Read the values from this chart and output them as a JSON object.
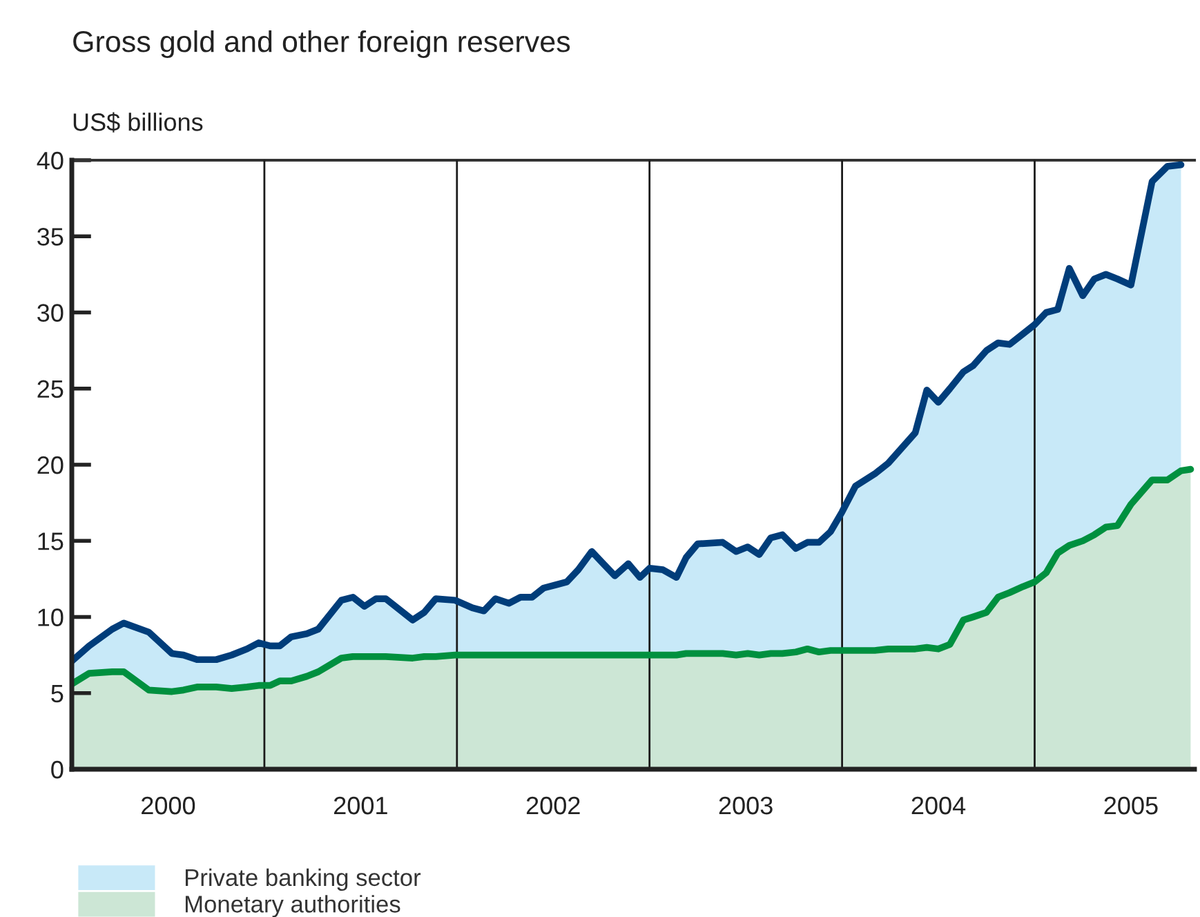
{
  "chart_data": {
    "type": "area",
    "stacked": true,
    "title": "Gross gold and other foreign reserves",
    "ylabel": "US$ billions",
    "x": [
      2000.0,
      2000.09,
      2000.21,
      2000.27,
      2000.4,
      2000.52,
      2000.58,
      2000.65,
      2000.75,
      2000.83,
      2000.91,
      2000.97,
      2001.03,
      2001.08,
      2001.14,
      2001.22,
      2001.28,
      2001.4,
      2001.46,
      2001.52,
      2001.58,
      2001.63,
      2001.77,
      2001.83,
      2001.89,
      2001.99,
      2002.08,
      2002.14,
      2002.2,
      2002.27,
      2002.33,
      2002.39,
      2002.45,
      2002.51,
      2002.57,
      2002.63,
      2002.7,
      2002.76,
      2002.82,
      2002.89,
      2002.95,
      2003.0,
      2003.07,
      2003.14,
      2003.19,
      2003.25,
      2003.38,
      2003.45,
      2003.51,
      2003.57,
      2003.63,
      2003.69,
      2003.76,
      2003.82,
      2003.88,
      2003.94,
      2004.0,
      2004.07,
      2004.17,
      2004.24,
      2004.31,
      2004.38,
      2004.44,
      2004.5,
      2004.56,
      2004.63,
      2004.68,
      2004.75,
      2004.81,
      2004.87,
      2004.94,
      2005.0,
      2005.06,
      2005.12,
      2005.18,
      2005.25,
      2005.31,
      2005.37,
      2005.43,
      2005.5,
      2005.61,
      2005.69,
      2005.76,
      2005.81
    ],
    "series": [
      {
        "name": "Monetary authorities",
        "color": "#00903f",
        "values": [
          5.6,
          6.3,
          6.4,
          6.4,
          5.2,
          5.1,
          5.2,
          5.4,
          5.4,
          5.3,
          5.4,
          5.5,
          5.5,
          5.8,
          5.8,
          6.1,
          6.4,
          7.3,
          7.4,
          7.4,
          7.4,
          7.4,
          7.3,
          7.4,
          7.4,
          7.5,
          7.5,
          7.5,
          7.5,
          7.5,
          7.5,
          7.5,
          7.5,
          7.5,
          7.5,
          7.5,
          7.5,
          7.5,
          7.5,
          7.5,
          7.5,
          7.5,
          7.5,
          7.5,
          7.6,
          7.6,
          7.6,
          7.5,
          7.6,
          7.5,
          7.6,
          7.6,
          7.7,
          7.9,
          7.7,
          7.8,
          7.8,
          7.8,
          7.8,
          7.9,
          7.9,
          7.9,
          8.0,
          7.9,
          8.2,
          9.8,
          10.0,
          10.3,
          11.3,
          11.6,
          12.0,
          12.3,
          12.9,
          14.2,
          14.7,
          15.0,
          15.4,
          15.9,
          16.0,
          17.4,
          19.0,
          19.0,
          19.6,
          19.7
        ]
      },
      {
        "name": "Private banking sector",
        "color": "#003d7a",
        "values": [
          1.5,
          1.8,
          2.8,
          3.2,
          3.8,
          2.5,
          2.3,
          1.8,
          1.8,
          2.2,
          2.5,
          2.8,
          2.6,
          2.3,
          2.9,
          2.8,
          2.8,
          3.8,
          3.9,
          3.3,
          3.8,
          3.8,
          2.5,
          2.9,
          3.8,
          3.6,
          3.1,
          2.9,
          3.7,
          3.4,
          3.8,
          3.8,
          4.4,
          4.6,
          4.8,
          5.6,
          6.8,
          6.0,
          5.2,
          6.0,
          5.1,
          5.7,
          5.6,
          5.1,
          6.3,
          7.2,
          7.3,
          6.8,
          7.0,
          6.6,
          7.6,
          7.8,
          6.8,
          7.0,
          7.2,
          7.8,
          9.1,
          10.8,
          11.6,
          12.2,
          13.2,
          14.2,
          16.9,
          16.2,
          16.8,
          16.3,
          16.5,
          17.2,
          16.7,
          16.3,
          16.6,
          16.9,
          17.1,
          16.0,
          18.2,
          16.1,
          16.8,
          16.6,
          16.2,
          14.4,
          19.6,
          20.6,
          20.1,
          null
        ]
      }
    ],
    "colors": [
      "#cce6d5",
      "#c8e9f8"
    ],
    "xlim": [
      2000.0,
      2005.83
    ],
    "xticks": [
      {
        "value": 2000.5,
        "label": "2000"
      },
      {
        "value": 2001.5,
        "label": "2001"
      },
      {
        "value": 2002.5,
        "label": "2002"
      },
      {
        "value": 2003.5,
        "label": "2003"
      },
      {
        "value": 2004.5,
        "label": "2004"
      },
      {
        "value": 2005.5,
        "label": "2005"
      }
    ],
    "ylim": [
      0,
      40
    ],
    "yticks": [
      0,
      5,
      10,
      15,
      20,
      25,
      30,
      35,
      40
    ],
    "ref_lines": [
      {
        "axis": "x",
        "value": 2001,
        "color": "#1a1a1a"
      },
      {
        "axis": "x",
        "value": 2002,
        "color": "#1a1a1a"
      },
      {
        "axis": "x",
        "value": 2003,
        "color": "#1a1a1a"
      },
      {
        "axis": "x",
        "value": 2004,
        "color": "#1a1a1a"
      },
      {
        "axis": "x",
        "value": 2005,
        "color": "#1a1a1a"
      }
    ],
    "grid": false,
    "legend": "bottom"
  }
}
